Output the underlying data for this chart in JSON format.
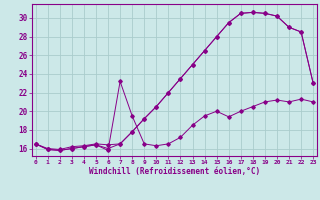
{
  "xlabel": "Windchill (Refroidissement éolien,°C)",
  "bg_color": "#cce8e8",
  "grid_color": "#aacccc",
  "line_color": "#880088",
  "xlim": [
    -0.3,
    23.3
  ],
  "ylim": [
    15.2,
    31.5
  ],
  "xticks": [
    0,
    1,
    2,
    3,
    4,
    5,
    6,
    7,
    8,
    9,
    10,
    11,
    12,
    13,
    14,
    15,
    16,
    17,
    18,
    19,
    20,
    21,
    22,
    23
  ],
  "yticks": [
    16,
    18,
    20,
    22,
    24,
    26,
    28,
    30
  ],
  "line1_x": [
    0,
    1,
    2,
    3,
    4,
    5,
    6,
    7,
    8,
    9,
    10,
    11,
    12,
    13,
    14,
    15,
    16,
    17,
    18,
    19,
    20,
    21,
    22,
    23
  ],
  "line1_y": [
    16.5,
    16.0,
    15.9,
    16.2,
    16.3,
    16.5,
    16.4,
    16.5,
    17.8,
    19.2,
    20.5,
    22.0,
    23.5,
    25.0,
    26.5,
    28.0,
    29.5,
    30.5,
    30.6,
    30.5,
    30.2,
    29.0,
    28.5,
    23.0
  ],
  "line2_x": [
    0,
    1,
    2,
    3,
    4,
    5,
    6,
    7,
    8,
    9,
    10,
    11,
    12,
    13,
    14,
    15,
    16,
    17,
    18,
    19,
    20,
    21,
    22,
    23
  ],
  "line2_y": [
    16.5,
    15.9,
    15.8,
    16.0,
    16.2,
    16.4,
    15.8,
    23.2,
    19.5,
    16.5,
    16.3,
    16.5,
    17.2,
    18.5,
    19.5,
    20.0,
    19.4,
    20.0,
    20.5,
    21.0,
    21.2,
    21.0,
    21.3,
    21.0
  ],
  "line3_x": [
    0,
    1,
    2,
    3,
    4,
    5,
    6,
    7,
    8,
    9,
    10,
    11,
    12,
    13,
    14,
    15,
    16,
    17,
    18,
    19,
    20,
    21,
    22,
    23
  ],
  "line3_y": [
    16.5,
    15.9,
    15.8,
    16.0,
    16.2,
    16.4,
    16.0,
    16.5,
    17.8,
    19.2,
    20.5,
    22.0,
    23.5,
    25.0,
    26.5,
    28.0,
    29.5,
    30.5,
    30.6,
    30.5,
    30.2,
    29.0,
    28.5,
    23.0
  ]
}
